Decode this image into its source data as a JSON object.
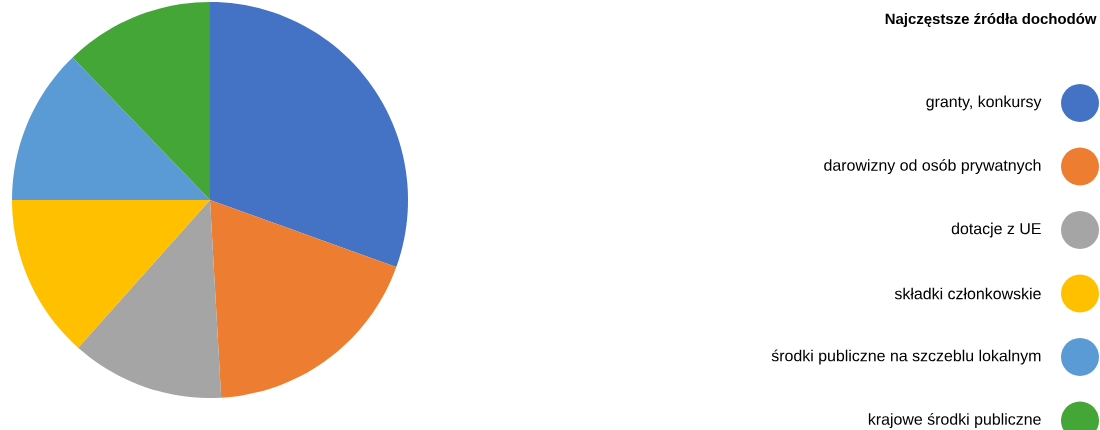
{
  "chart_data": {
    "type": "pie",
    "legend_title": "Najczęstsze źródła dochodów",
    "categories": [
      "granty, konkursy",
      "darowizny od osób prywatnych",
      "dotacje z UE",
      "składki członkowskie",
      "środki publiczne na szczeblu lokalnym",
      "krajowe środki publiczne"
    ],
    "values": [
      30.5,
      18.6,
      12.5,
      13.4,
      12.8,
      12.2
    ],
    "colors": [
      "#4472c4",
      "#ed7d31",
      "#a5a5a5",
      "#ffc000",
      "#5b9bd5",
      "#43a637"
    ],
    "legend": "right"
  }
}
